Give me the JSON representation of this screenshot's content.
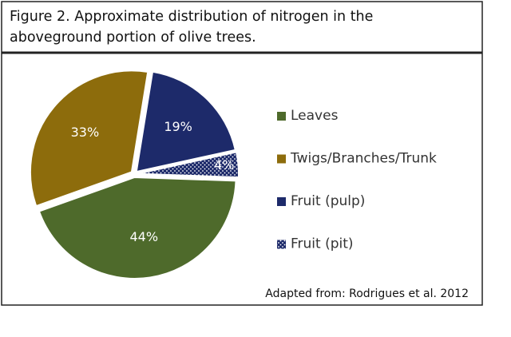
{
  "chart_data": {
    "type": "pie",
    "title": [
      "Figure 2. Approximate distribution of nitrogen in the",
      "aboveground portion of olive trees."
    ],
    "categories": [
      "Leaves",
      "Twigs/Branches/Trunk",
      "Fruit (pulp)",
      "Fruit (pit)"
    ],
    "values": [
      44,
      33,
      19,
      4
    ],
    "value_labels": [
      "44%",
      "33%",
      "19%",
      "4%"
    ],
    "colors": [
      "#4e6a2b",
      "#8d6c0c",
      "#1d2a6a",
      "#1d2a6a"
    ],
    "patterns": [
      null,
      null,
      null,
      "dots"
    ],
    "legend": "right",
    "source": "Adapted from: Rodrigues et al. 2012"
  }
}
